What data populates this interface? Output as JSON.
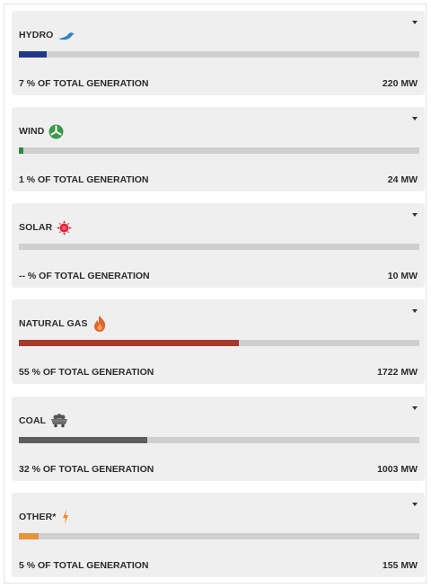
{
  "sources": [
    {
      "id": "hydro",
      "label": "HYDRO",
      "icon": "hydro-wave-icon",
      "percent_text": "7 % OF TOTAL GENERATION",
      "mw_text": "220 MW",
      "share": 0.07,
      "color": "#1f3a8a"
    },
    {
      "id": "wind",
      "label": "WIND",
      "icon": "wind-turbine-icon",
      "percent_text": "1 % OF TOTAL GENERATION",
      "mw_text": "24 MW",
      "share": 0.01,
      "color": "#2e8b3e"
    },
    {
      "id": "solar",
      "label": "SOLAR",
      "icon": "sun-icon",
      "percent_text": "-- % OF TOTAL GENERATION",
      "mw_text": "10 MW",
      "share": 0,
      "color": "#d7263d"
    },
    {
      "id": "natural-gas",
      "label": "NATURAL GAS",
      "icon": "flame-icon",
      "percent_text": "55 % OF TOTAL GENERATION",
      "mw_text": "1722 MW",
      "share": 0.55,
      "color": "#a33a2c"
    },
    {
      "id": "coal",
      "label": "COAL",
      "icon": "coal-cart-icon",
      "percent_text": "32 % OF TOTAL GENERATION",
      "mw_text": "1003 MW",
      "share": 0.32,
      "color": "#5d5d5d"
    },
    {
      "id": "other",
      "label": "OTHER*",
      "icon": "lightning-bolt-icon",
      "percent_text": "5 % OF TOTAL GENERATION",
      "mw_text": "155 MW",
      "share": 0.05,
      "color": "#e8923a"
    }
  ]
}
